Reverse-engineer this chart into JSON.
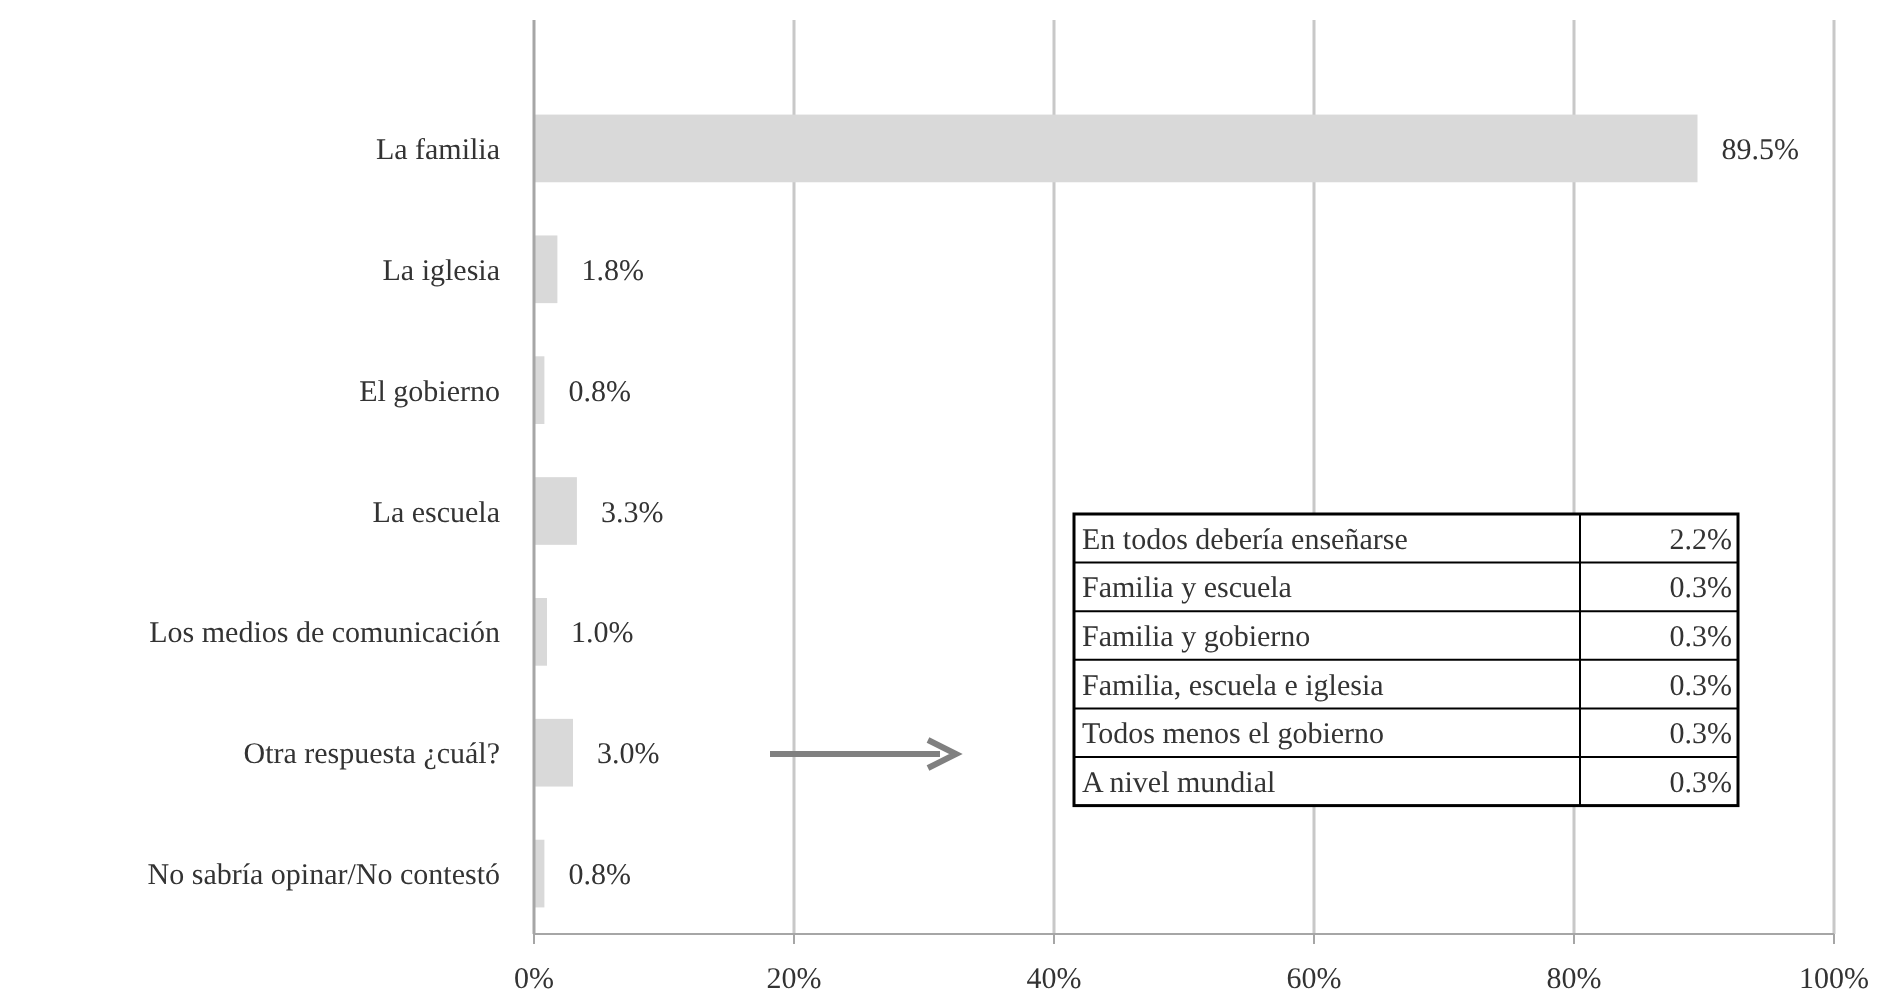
{
  "chart_data": [
    {
      "type": "bar",
      "orientation": "horizontal",
      "categories": [
        "La familia",
        "La iglesia",
        "El gobierno",
        "La escuela",
        "Los medios de comunicación",
        "Otra respuesta ¿cuál?",
        "No sabría opinar/No contestó"
      ],
      "values": [
        89.5,
        1.8,
        0.8,
        3.3,
        1.0,
        3.0,
        0.8
      ],
      "value_labels": [
        "89.5%",
        "1.8%",
        "0.8%",
        "3.3%",
        "1.0%",
        "3.0%",
        "0.8%"
      ],
      "color": "#d9d9d9",
      "xlim": [
        0,
        100
      ],
      "xticks": [
        {
          "value": 0,
          "label": "0%"
        },
        {
          "value": 20,
          "label": "20%"
        },
        {
          "value": 40,
          "label": "40%"
        },
        {
          "value": 60,
          "label": "60%"
        },
        {
          "value": 80,
          "label": "80%"
        },
        {
          "value": 100,
          "label": "100%"
        }
      ],
      "grid": "x"
    },
    {
      "type": "other",
      "categories": [
        "En todos debería enseñarse",
        "Familia y escuela",
        "Familia y gobierno",
        "Familia, escuela e iglesia",
        "Todos menos el gobierno",
        "A nivel mundial"
      ],
      "value_labels": [
        "2.2%",
        "0.3%",
        "0.3%",
        "0.3%",
        "0.3%",
        "0.3%"
      ]
    }
  ]
}
